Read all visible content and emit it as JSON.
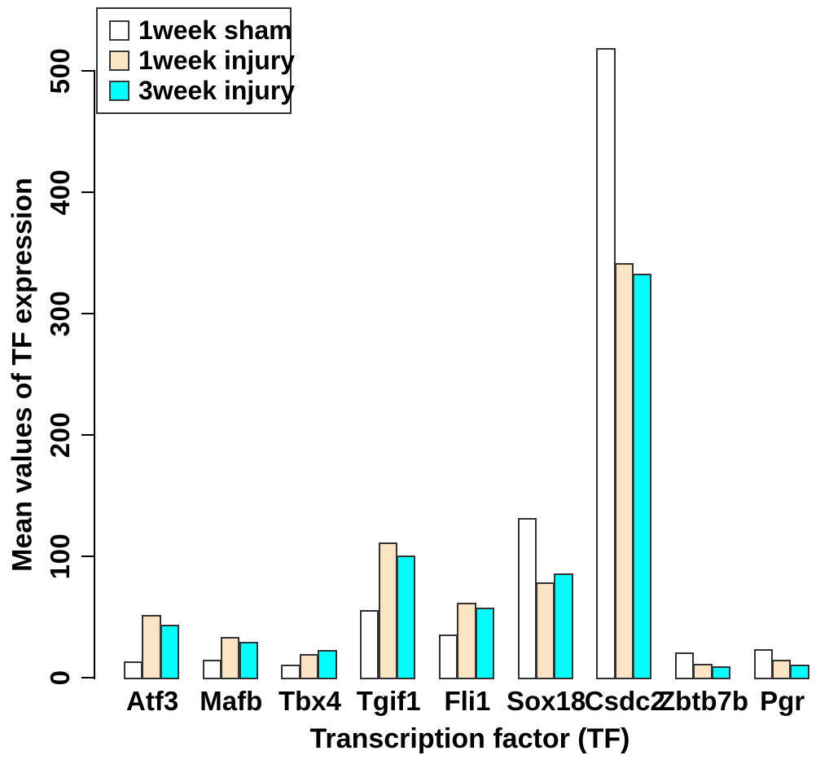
{
  "figure": {
    "background": "#FFFFFF",
    "text_color": "#000000",
    "bar_border_color": "#333333"
  },
  "chart_data": {
    "type": "bar",
    "title": "",
    "xlabel": "Transcription factor (TF)",
    "ylabel": "Mean values of TF expression",
    "categories": [
      "Atf3",
      "Mafb",
      "Tbx4",
      "Tgif1",
      "Fli1",
      "Sox18",
      "Csdc2",
      "Zbtb7b",
      "Pgr"
    ],
    "series": [
      {
        "name": "1week sham",
        "color": "#FFFFFF",
        "values": [
          15,
          16,
          12,
          57,
          37,
          133,
          520,
          22,
          25
        ]
      },
      {
        "name": "1week injury",
        "color": "#FAE4C4",
        "values": [
          53,
          35,
          21,
          113,
          63,
          80,
          343,
          13,
          16
        ]
      },
      {
        "name": "3week injury",
        "color": "#00FFFF",
        "values": [
          45,
          31,
          24,
          102,
          59,
          87,
          334,
          11,
          12
        ]
      }
    ],
    "yticks": [
      0,
      100,
      200,
      300,
      400,
      500
    ],
    "ylim": [
      0,
      530
    ],
    "grid": false,
    "legend_position": "top-left"
  }
}
